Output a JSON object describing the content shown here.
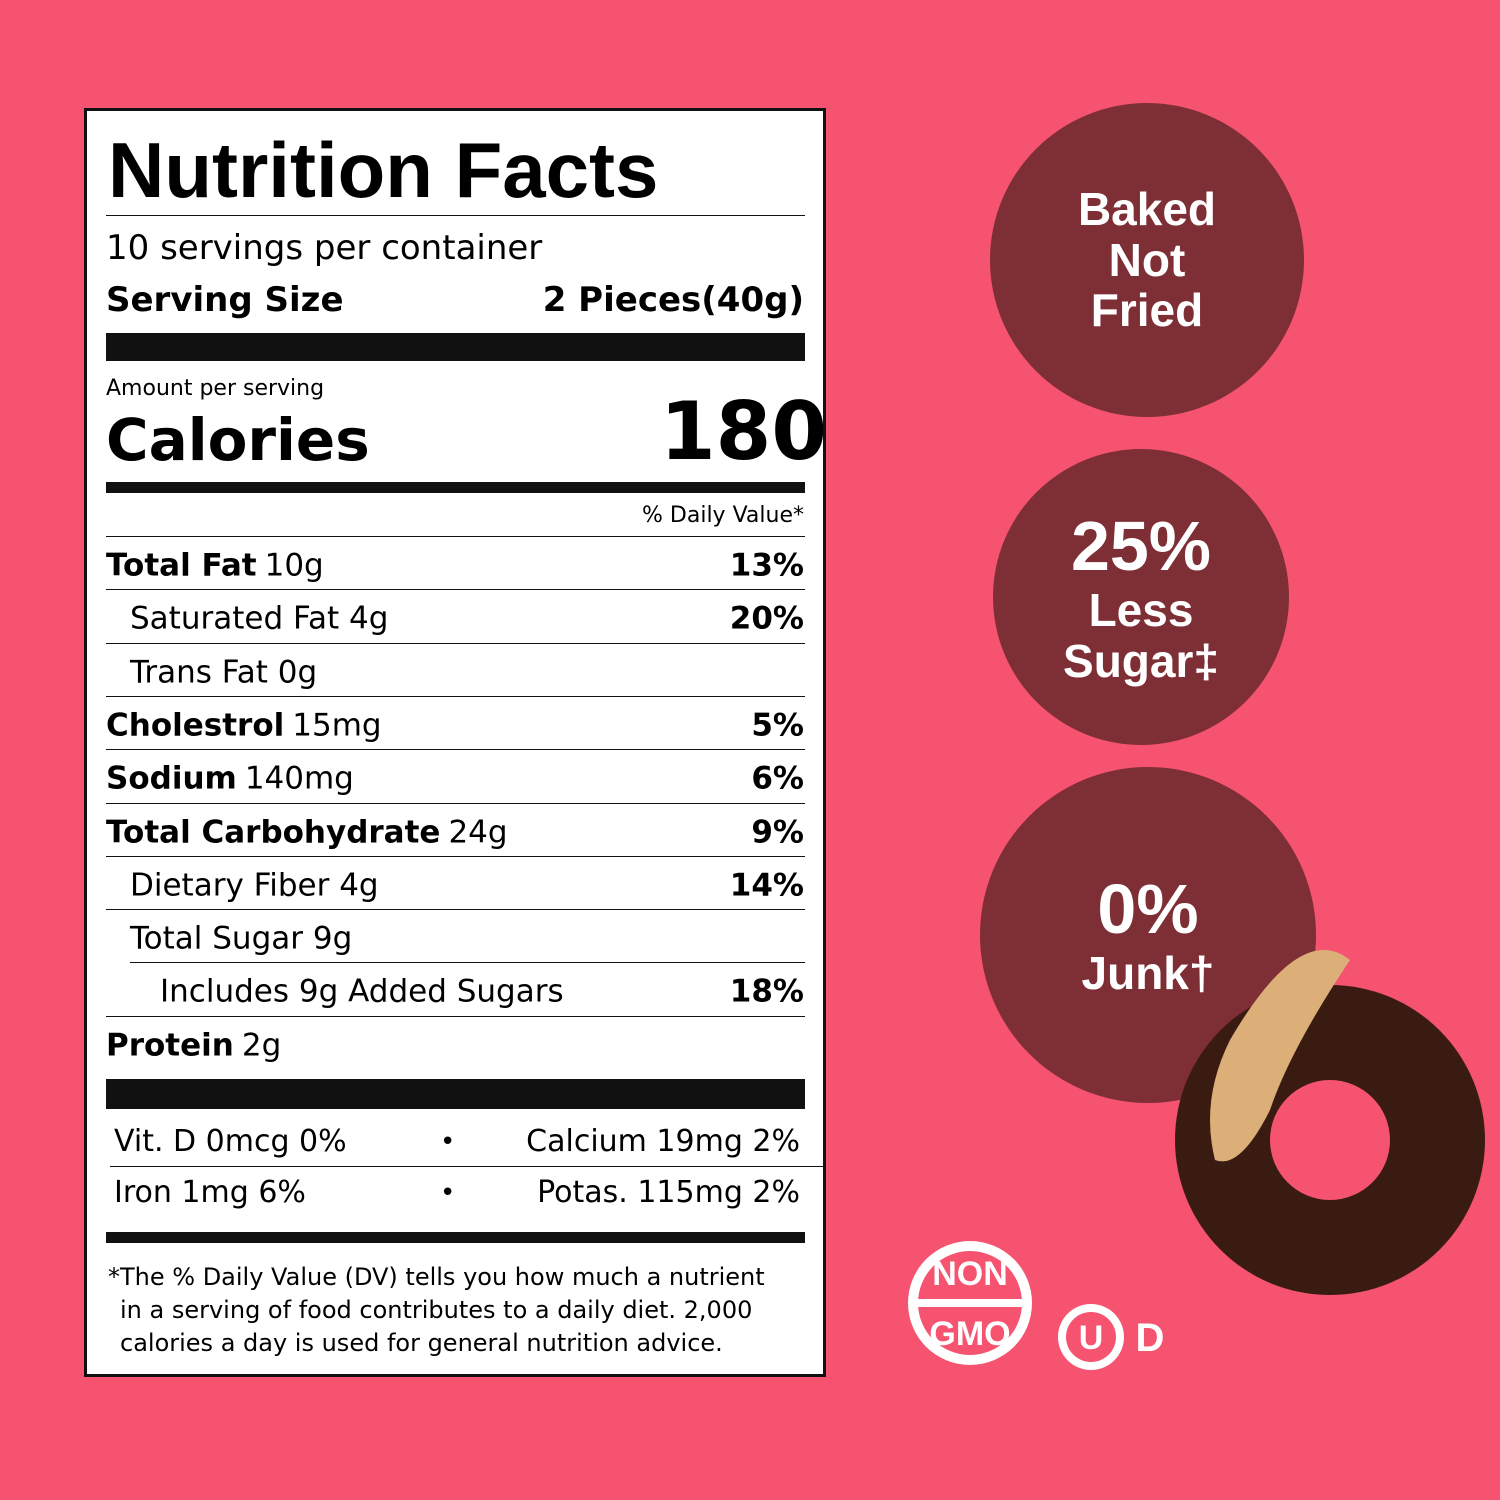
{
  "label": {
    "title": "Nutrition Facts",
    "servings": "10 servings per container",
    "serving_size_label": "Serving Size",
    "serving_size": "2 Pieces(40g)",
    "amount_per_serving": "Amount per serving",
    "calories_label": "Calories",
    "calories": "180",
    "daily_value_header": "% Daily Value*",
    "rows": [
      {
        "name": "Total Fat",
        "amount": "10g",
        "dv": "13%"
      },
      {
        "name": "Saturated Fat 4g",
        "dv": "20%"
      },
      {
        "name": "Trans Fat 0g"
      },
      {
        "name": "Cholestrol",
        "amount": "15mg",
        "dv": "5%"
      },
      {
        "name": "Sodium",
        "amount": "140mg",
        "dv": "6%"
      },
      {
        "name": "Total Carbohydrate",
        "amount": "24g",
        "dv": "9%"
      },
      {
        "name": "Dietary Fiber 4g",
        "dv": "14%"
      },
      {
        "name": "Total Sugar 9g"
      },
      {
        "name": "Includes 9g Added Sugars",
        "dv": "18%"
      },
      {
        "name": "Protein",
        "amount": "2g"
      }
    ],
    "vitamins": [
      [
        "Vit. D 0mcg 0%",
        "Calcium 19mg 2%"
      ],
      [
        "Iron 1mg 6%",
        "Potas. 115mg 2%"
      ]
    ],
    "separator": "•",
    "footnote": [
      "*The % Daily Value (DV) tells you how much a nutrient",
      "in a serving of food contributes to a daily diet. 2,000",
      "calories a day is used for general nutrition advice."
    ]
  },
  "badges": [
    [
      "Baked",
      "Not",
      "Fried"
    ],
    [
      "25%",
      "Less",
      "Sugar‡"
    ],
    [
      "0%",
      "Junk†"
    ]
  ],
  "logos": {
    "non_gmo": [
      "NON",
      "GMO"
    ],
    "kosher": [
      "U",
      "D"
    ]
  }
}
